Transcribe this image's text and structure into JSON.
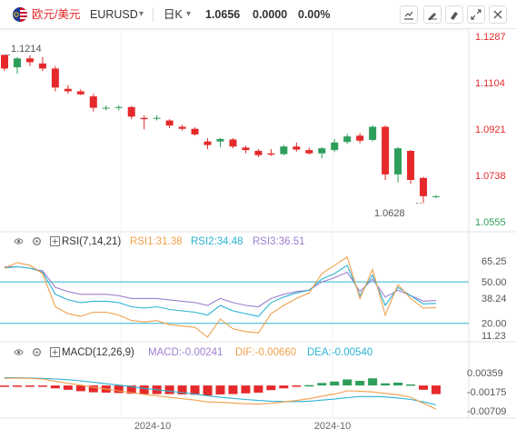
{
  "header": {
    "symbol_cn": "欧元/美元",
    "symbol": "EURUSD",
    "period": "日K",
    "price": "1.0656",
    "change": "0.0000",
    "change_pct": "0.00%"
  },
  "toolbar_icons": [
    "line-chart-icon",
    "brush-icon",
    "drawing-icon",
    "fullscreen-icon",
    "close-icon"
  ],
  "colors": {
    "up": "#2e9e5b",
    "down": "#e5292b",
    "rsi1": "#f0a04b",
    "rsi2": "#2bb3d3",
    "rsi3": "#9c7fd0",
    "macd_line": "#f0a04b",
    "signal_line": "#2bb3d3",
    "price_axis": "#e5292b",
    "low_label": "#2e9e5b"
  },
  "price_axis": {
    "labels": [
      "1.1287",
      "1.1104",
      "1.0921",
      "1.0738",
      "1.0555"
    ]
  },
  "annotations": {
    "high": "1.1214",
    "low": "1.0628"
  },
  "rsi": {
    "title": "RSI(7,14,21)",
    "rsi1": "RSI1:31.38",
    "rsi2": "RSI2:34.48",
    "rsi3": "RSI3:36.51",
    "axis": [
      "65.25",
      "50.00",
      "38.24",
      "20.00",
      "11.23"
    ]
  },
  "macd": {
    "title": "MACD(12,26,9)",
    "macd": "MACD:-0.00241",
    "dif": "DIF:-0.00660",
    "dea": "DEA:-0.00540",
    "axis": [
      "0.00359",
      "-0.00175",
      "-0.00709"
    ]
  },
  "x_axis": {
    "labels": [
      "2024-10",
      "2024-10"
    ]
  },
  "chart_data": {
    "type": "candlestick",
    "ylim": [
      1.0555,
      1.1287
    ],
    "candles": [
      {
        "o": 1.1214,
        "h": 1.1214,
        "l": 1.115,
        "c": 1.116
      },
      {
        "o": 1.1165,
        "h": 1.1205,
        "l": 1.114,
        "c": 1.12
      },
      {
        "o": 1.12,
        "h": 1.1212,
        "l": 1.117,
        "c": 1.1185
      },
      {
        "o": 1.118,
        "h": 1.1205,
        "l": 1.115,
        "c": 1.116
      },
      {
        "o": 1.116,
        "h": 1.117,
        "l": 1.107,
        "c": 1.1085
      },
      {
        "o": 1.108,
        "h": 1.1095,
        "l": 1.106,
        "c": 1.107
      },
      {
        "o": 1.107,
        "h": 1.1078,
        "l": 1.1055,
        "c": 1.1058
      },
      {
        "o": 1.105,
        "h": 1.106,
        "l": 1.099,
        "c": 1.1005
      },
      {
        "o": 1.1005,
        "h": 1.1015,
        "l": 1.0995,
        "c": 1.1005
      },
      {
        "o": 1.1005,
        "h": 1.1015,
        "l": 1.0995,
        "c": 1.1008
      },
      {
        "o": 1.1008,
        "h": 1.1012,
        "l": 1.096,
        "c": 1.097
      },
      {
        "o": 1.0965,
        "h": 1.0975,
        "l": 1.092,
        "c": 1.096
      },
      {
        "o": 1.0962,
        "h": 1.0975,
        "l": 1.0955,
        "c": 1.0965
      },
      {
        "o": 1.0955,
        "h": 1.096,
        "l": 1.0925,
        "c": 1.0935
      },
      {
        "o": 1.093,
        "h": 1.0938,
        "l": 1.0915,
        "c": 1.0922
      },
      {
        "o": 1.0922,
        "h": 1.0928,
        "l": 1.0895,
        "c": 1.09
      },
      {
        "o": 1.0872,
        "h": 1.0885,
        "l": 1.0842,
        "c": 1.0858
      },
      {
        "o": 1.0872,
        "h": 1.0885,
        "l": 1.085,
        "c": 1.0882
      },
      {
        "o": 1.088,
        "h": 1.0885,
        "l": 1.0845,
        "c": 1.0852
      },
      {
        "o": 1.0848,
        "h": 1.0855,
        "l": 1.0825,
        "c": 1.0838
      },
      {
        "o": 1.0835,
        "h": 1.0842,
        "l": 1.081,
        "c": 1.0818
      },
      {
        "o": 1.0825,
        "h": 1.0842,
        "l": 1.0815,
        "c": 1.082
      },
      {
        "o": 1.0822,
        "h": 1.0858,
        "l": 1.0818,
        "c": 1.0852
      },
      {
        "o": 1.0852,
        "h": 1.0868,
        "l": 1.0832,
        "c": 1.084
      },
      {
        "o": 1.0838,
        "h": 1.0848,
        "l": 1.082,
        "c": 1.0825
      },
      {
        "o": 1.0825,
        "h": 1.085,
        "l": 1.0805,
        "c": 1.0845
      },
      {
        "o": 1.0838,
        "h": 1.0882,
        "l": 1.083,
        "c": 1.0868
      },
      {
        "o": 1.087,
        "h": 1.0902,
        "l": 1.0862,
        "c": 1.0892
      },
      {
        "o": 1.0895,
        "h": 1.0905,
        "l": 1.0865,
        "c": 1.0875
      },
      {
        "o": 1.0878,
        "h": 1.0935,
        "l": 1.0872,
        "c": 1.093
      },
      {
        "o": 1.093,
        "h": 1.0935,
        "l": 1.072,
        "c": 1.0742
      },
      {
        "o": 1.0742,
        "h": 1.085,
        "l": 1.071,
        "c": 1.0845
      },
      {
        "o": 1.0835,
        "h": 1.0838,
        "l": 1.0705,
        "c": 1.072
      },
      {
        "o": 1.0728,
        "h": 1.0732,
        "l": 1.0628,
        "c": 1.0656
      },
      {
        "o": 1.0656,
        "h": 1.066,
        "l": 1.0648,
        "c": 1.0656
      }
    ],
    "rsi": {
      "ylim": [
        11.23,
        65.25
      ],
      "rsi1": [
        60,
        64,
        62,
        56,
        32,
        27,
        25,
        28,
        28,
        26,
        22,
        21,
        22,
        19,
        18,
        17,
        10,
        23,
        16,
        14,
        13,
        27,
        33,
        38,
        42,
        56,
        62,
        68,
        38,
        59,
        26,
        48,
        38,
        31,
        31.38
      ],
      "rsi2": [
        60,
        61,
        60,
        57,
        41,
        37,
        35,
        36,
        36,
        35,
        32,
        31,
        32,
        30,
        29,
        28,
        26,
        33,
        29,
        27,
        25,
        35,
        39,
        42,
        44,
        52,
        56,
        62,
        40,
        55,
        33,
        46,
        40,
        34,
        34.48
      ],
      "rsi3": [
        61,
        61,
        60,
        58,
        46,
        43,
        41,
        41,
        41,
        40,
        38,
        38,
        38,
        37,
        36,
        35,
        33,
        38,
        35,
        33,
        32,
        38,
        41,
        43,
        44,
        50,
        53,
        57,
        43,
        52,
        39,
        44,
        40,
        36,
        36.51
      ]
    },
    "macd": {
      "ylim": [
        -0.00709,
        0.00359
      ],
      "hist": [
        -0.0002,
        -0.0001,
        -0.0001,
        -0.0001,
        -0.0008,
        -0.0012,
        -0.0016,
        -0.0019,
        -0.002,
        -0.0021,
        -0.0023,
        -0.0024,
        -0.0024,
        -0.0024,
        -0.0025,
        -0.0026,
        -0.0028,
        -0.0025,
        -0.0024,
        -0.0022,
        -0.002,
        -0.0013,
        -0.0008,
        -0.0003,
        0.0001,
        0.0007,
        0.0011,
        0.0017,
        0.0013,
        0.002,
        0.0006,
        0.0008,
        0.0003,
        -0.0012,
        -0.00241
      ],
      "dif": [
        0.002,
        0.0021,
        0.002,
        0.0018,
        0.0012,
        0.0006,
        0.0001,
        -0.0005,
        -0.001,
        -0.0015,
        -0.002,
        -0.0025,
        -0.0029,
        -0.0033,
        -0.0037,
        -0.0041,
        -0.0046,
        -0.0047,
        -0.0049,
        -0.0051,
        -0.0052,
        -0.005,
        -0.0046,
        -0.0042,
        -0.0037,
        -0.003,
        -0.0024,
        -0.0015,
        -0.0016,
        -0.0018,
        -0.0022,
        -0.0026,
        -0.0033,
        -0.005,
        -0.0066
      ],
      "dea": [
        0.0022,
        0.0022,
        0.0021,
        0.002,
        0.0018,
        0.0016,
        0.0013,
        0.0009,
        0.0005,
        0.0001,
        -0.0003,
        -0.0008,
        -0.0012,
        -0.0016,
        -0.002,
        -0.0024,
        -0.0029,
        -0.0033,
        -0.0036,
        -0.0039,
        -0.0042,
        -0.0044,
        -0.0045,
        -0.0045,
        -0.0044,
        -0.0041,
        -0.0038,
        -0.0034,
        -0.0031,
        -0.0031,
        -0.0032,
        -0.0035,
        -0.0039,
        -0.0046,
        -0.0054
      ]
    }
  }
}
